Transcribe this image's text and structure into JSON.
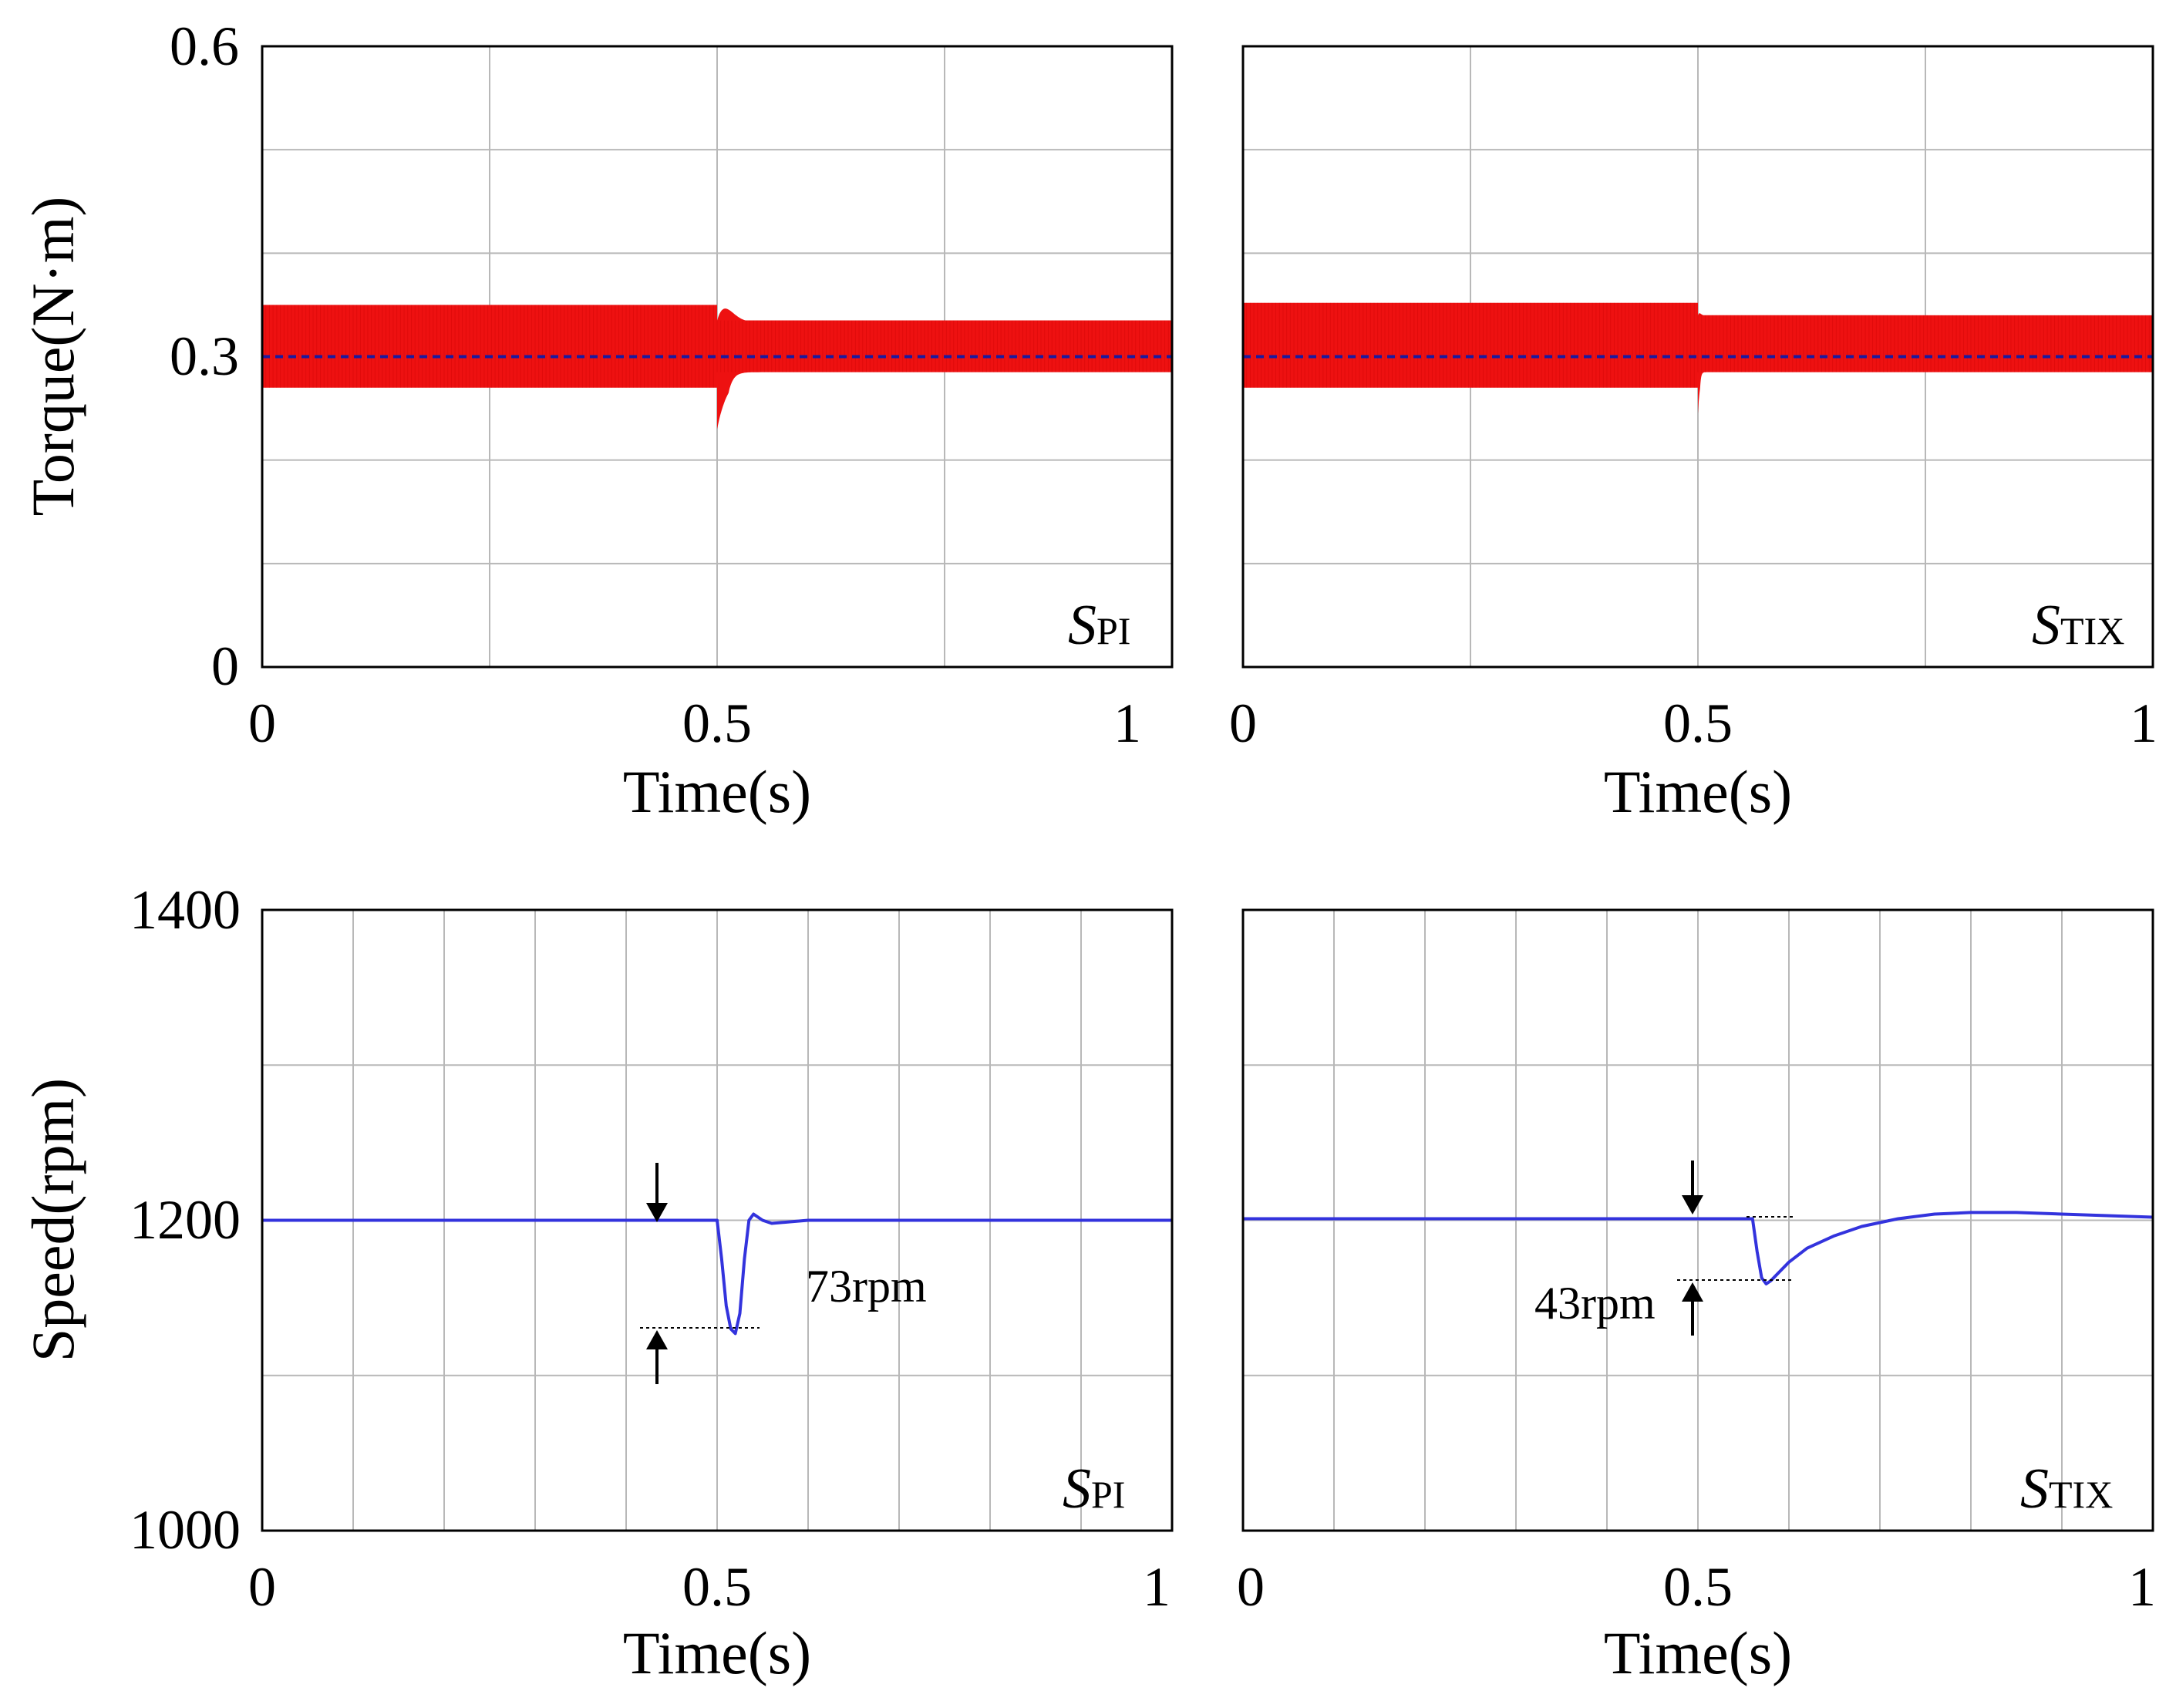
{
  "figure": {
    "colors": {
      "torque": "#ee1111",
      "torque_ref": "#1a1aa0",
      "speed": "#3333dd",
      "grid": "#b8b8b8",
      "frame": "#000000"
    }
  },
  "chart_data": [
    {
      "id": "torque-pi",
      "type": "line",
      "ylabel": "Torque(N·m)",
      "xlabel": "Time(s)",
      "xlim": [
        0,
        1
      ],
      "ylim": [
        0,
        0.6
      ],
      "xticks": [
        "0",
        "0.5",
        "1"
      ],
      "yticks": [
        "0",
        "0.3",
        "0.6"
      ],
      "tag": {
        "main": "S",
        "sub": "PI"
      },
      "series": [
        {
          "name": "torque",
          "ripple_band": [
            0.27,
            0.35
          ],
          "ripple_band_after": [
            0.285,
            0.335
          ],
          "step_time": 0.5,
          "transient_min": 0.23,
          "transient_max": 0.365,
          "settle_time": 0.55
        },
        {
          "name": "reference",
          "x": [
            0,
            1
          ],
          "y": [
            0.3,
            0.3
          ]
        }
      ]
    },
    {
      "id": "torque-tix",
      "type": "line",
      "ylabel": "",
      "xlabel": "Time(s)",
      "xlim": [
        0,
        1
      ],
      "ylim": [
        0,
        0.6
      ],
      "xticks": [
        "0",
        "0.5",
        "1"
      ],
      "yticks": [],
      "tag": {
        "main": "S",
        "sub": "TIX"
      },
      "series": [
        {
          "name": "torque",
          "ripple_band": [
            0.27,
            0.352
          ],
          "ripple_band_after": [
            0.285,
            0.34
          ],
          "step_time": 0.5,
          "transient_min": 0.245,
          "transient_max": 0.345,
          "settle_time": 0.51
        },
        {
          "name": "reference",
          "x": [
            0,
            1
          ],
          "y": [
            0.3,
            0.3
          ]
        }
      ]
    },
    {
      "id": "speed-pi",
      "type": "line",
      "ylabel": "Speed(rpm)",
      "xlabel": "Time(s)",
      "xlim": [
        0,
        1
      ],
      "ylim": [
        1000,
        1400
      ],
      "xticks": [
        "0",
        "0.5",
        "1"
      ],
      "yticks": [
        "1000",
        "1200",
        "1400"
      ],
      "tag": {
        "main": "S",
        "sub": "PI"
      },
      "annotation": "73rpm",
      "series": [
        {
          "name": "speed",
          "x": [
            0,
            0.5,
            0.505,
            0.51,
            0.515,
            0.52,
            0.525,
            0.53,
            0.535,
            0.54,
            0.55,
            0.56,
            0.58,
            0.6,
            0.7,
            0.8,
            0.9,
            1.0
          ],
          "y": [
            1200,
            1200,
            1175,
            1145,
            1130,
            1127,
            1140,
            1175,
            1200,
            1204,
            1200,
            1198,
            1199,
            1200,
            1200,
            1200,
            1200,
            1200
          ]
        }
      ]
    },
    {
      "id": "speed-tix",
      "type": "line",
      "ylabel": "",
      "xlabel": "Time(s)",
      "xlim": [
        0,
        1
      ],
      "ylim": [
        1000,
        1400
      ],
      "xticks": [
        "0",
        "0.5",
        "1"
      ],
      "yticks": [],
      "tag": {
        "main": "S",
        "sub": "TIX"
      },
      "annotation": "43rpm",
      "series": [
        {
          "name": "speed",
          "x": [
            0,
            0.56,
            0.565,
            0.57,
            0.575,
            0.58,
            0.59,
            0.6,
            0.62,
            0.65,
            0.68,
            0.72,
            0.76,
            0.8,
            0.85,
            0.9,
            0.95,
            1.0
          ],
          "y": [
            1201,
            1201,
            1180,
            1163,
            1159,
            1161,
            1167,
            1173,
            1182,
            1190,
            1196,
            1201,
            1204,
            1205,
            1205,
            1204,
            1203,
            1202
          ]
        }
      ]
    }
  ]
}
